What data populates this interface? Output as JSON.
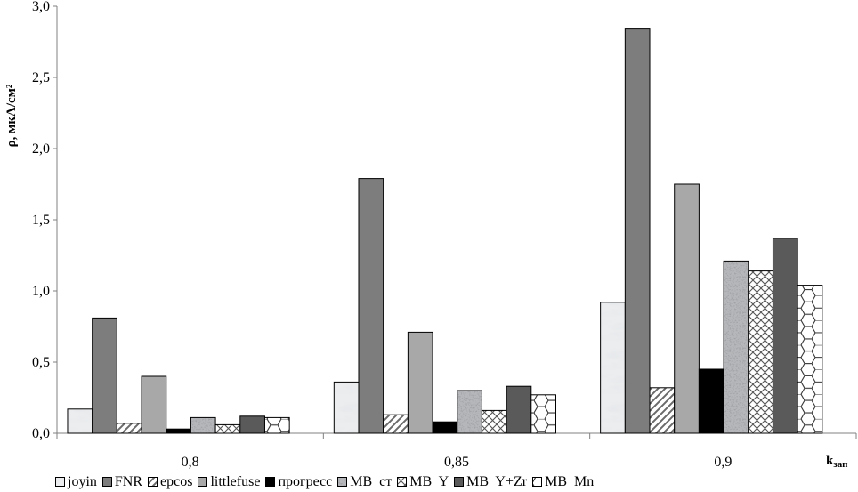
{
  "chart_data": {
    "type": "bar",
    "categories": [
      "0,8",
      "0,85",
      "0,9"
    ],
    "ylabel": "ρ, мкА/см²",
    "xlabel": "kзап",
    "ylim": [
      0,
      3.0
    ],
    "yticks": [
      "0,0",
      "0,5",
      "1,0",
      "1,5",
      "2,0",
      "2,5",
      "3,0"
    ],
    "grid": false,
    "legend_position": "bottom",
    "series": [
      {
        "name": "joyin",
        "values": [
          0.17,
          0.36,
          0.92
        ],
        "pattern": "marble-light"
      },
      {
        "name": "FNR",
        "values": [
          0.81,
          1.79,
          2.84
        ],
        "pattern": "solid-mid"
      },
      {
        "name": "epcos",
        "values": [
          0.07,
          0.13,
          0.32
        ],
        "pattern": "diagonal"
      },
      {
        "name": "littlefuse",
        "values": [
          0.4,
          0.71,
          1.75
        ],
        "pattern": "solid-light"
      },
      {
        "name": "прогресс",
        "values": [
          0.03,
          0.08,
          0.45
        ],
        "pattern": "solid-black"
      },
      {
        "name": "MB  ст",
        "values": [
          0.11,
          0.3,
          1.21
        ],
        "pattern": "granite"
      },
      {
        "name": "MB  Y",
        "values": [
          0.06,
          0.16,
          1.14
        ],
        "pattern": "crosshatch"
      },
      {
        "name": "MB  Y+Zr",
        "values": [
          0.12,
          0.33,
          1.37
        ],
        "pattern": "solid-dark"
      },
      {
        "name": "MB  Mn",
        "values": [
          0.11,
          0.27,
          1.04
        ],
        "pattern": "hexagon"
      }
    ]
  }
}
